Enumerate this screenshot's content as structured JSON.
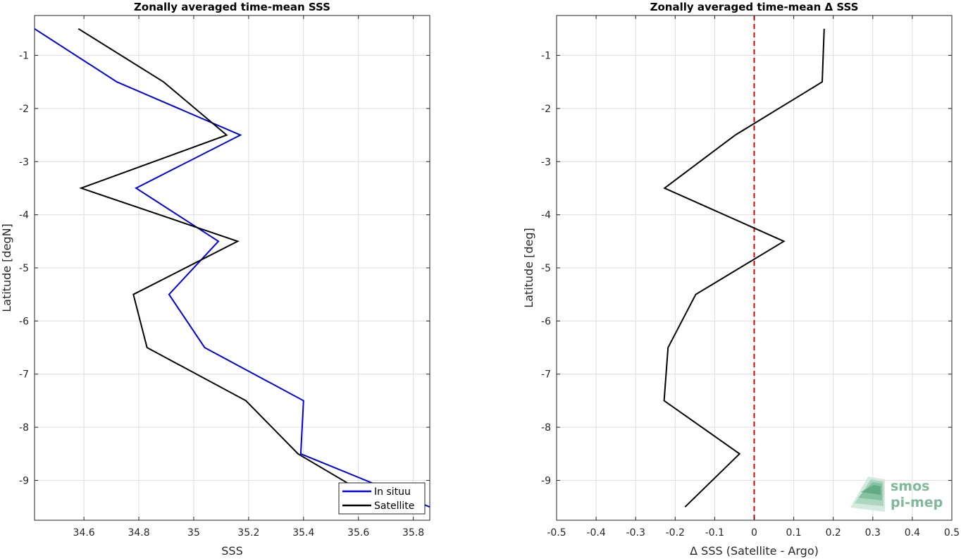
{
  "chart_data": [
    {
      "type": "line",
      "title": "Zonally averaged time-mean SSS",
      "xlabel": "SSS",
      "ylabel": "Latitude [degN]",
      "xlim": [
        34.42,
        35.86
      ],
      "ylim": [
        -9.75,
        -0.25
      ],
      "xticks": [
        34.6,
        34.8,
        35,
        35.2,
        35.4,
        35.6,
        35.8
      ],
      "xtick_labels": [
        "34.6",
        "34.8",
        "35",
        "35.2",
        "35.4",
        "35.6",
        "35.8"
      ],
      "yticks": [
        -1,
        -2,
        -3,
        -4,
        -5,
        -6,
        -7,
        -8,
        -9
      ],
      "ytick_labels": [
        "-1",
        "-2",
        "-3",
        "-4",
        "-5",
        "-6",
        "-7",
        "-8",
        "-9"
      ],
      "grid": true,
      "legend": "bottom-right",
      "series": [
        {
          "name": "In situu",
          "color": "#0000e0",
          "x": [
            34.42,
            34.72,
            35.17,
            34.79,
            35.09,
            34.91,
            35.04,
            35.4,
            35.39,
            35.65,
            35.86
          ],
          "y": [
            -0.5,
            -1.5,
            -2.5,
            -3.5,
            -4.5,
            -5.5,
            -6.5,
            -7.5,
            -8.5,
            -9.05,
            -9.5
          ]
        },
        {
          "name": "Satellite",
          "color": "#000000",
          "x": [
            34.58,
            34.89,
            35.12,
            34.59,
            35.16,
            34.78,
            34.83,
            35.19,
            35.38,
            35.56
          ],
          "y": [
            -0.5,
            -1.5,
            -2.5,
            -3.5,
            -4.5,
            -5.5,
            -6.5,
            -7.5,
            -8.5,
            -9.05
          ]
        }
      ]
    },
    {
      "type": "line",
      "title": "Zonally averaged time-mean Δ SSS",
      "xlabel": "Δ SSS (Satellite - Argo)",
      "ylabel": "Latitude [deg]",
      "xlim": [
        -0.5,
        0.5
      ],
      "ylim": [
        -9.75,
        -0.25
      ],
      "xticks": [
        -0.5,
        -0.4,
        -0.3,
        -0.2,
        -0.1,
        0,
        0.1,
        0.2,
        0.3,
        0.4,
        0.5
      ],
      "xtick_labels": [
        "-0.5",
        "-0.4",
        "-0.3",
        "-0.2",
        "-0.1",
        "0",
        "0.1",
        "0.2",
        "0.3",
        "0.4",
        "0.5"
      ],
      "yticks": [
        -1,
        -2,
        -3,
        -4,
        -5,
        -6,
        -7,
        -8,
        -9
      ],
      "ytick_labels": [
        "-1",
        "-2",
        "-3",
        "-4",
        "-5",
        "-6",
        "-7",
        "-8",
        "-9"
      ],
      "grid": true,
      "zero_line": {
        "x": 0,
        "color": "#e00000",
        "style": "dashed"
      },
      "series": [
        {
          "name": "",
          "color": "#000000",
          "x": [
            0.177,
            0.172,
            -0.048,
            -0.227,
            0.075,
            -0.148,
            -0.218,
            -0.228,
            -0.037,
            -0.175
          ],
          "y": [
            -0.5,
            -1.5,
            -2.5,
            -3.5,
            -4.5,
            -5.5,
            -6.5,
            -7.5,
            -8.5,
            -9.5
          ]
        }
      ]
    }
  ],
  "logo": {
    "line1": "smos",
    "line2": "pi-mep",
    "color": "#7fb89a"
  }
}
